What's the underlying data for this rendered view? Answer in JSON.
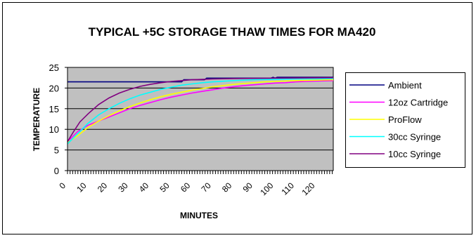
{
  "chart_data": {
    "type": "line",
    "title": "TYPICAL +5C STORAGE THAW TIMES FOR MA420",
    "xlabel": "MINUTES",
    "ylabel": "TEMPERATURE",
    "ylim": [
      0,
      25
    ],
    "yticks": [
      "0",
      "5",
      "10",
      "15",
      "20",
      "25"
    ],
    "xlim": [
      0,
      128
    ],
    "xticks": [
      "0",
      "10",
      "20",
      "30",
      "40",
      "50",
      "60",
      "70",
      "80",
      "90",
      "100",
      "110",
      "120"
    ],
    "grid": true,
    "legend_position": "right",
    "colors": {
      "plot_background": "#c0c0c0",
      "frame": "#000000"
    },
    "series": [
      {
        "name": "Ambient",
        "color": "#000080",
        "points": [
          [
            0,
            21.5
          ],
          [
            55,
            21.5
          ],
          [
            56,
            22.0
          ],
          [
            66,
            22.0
          ],
          [
            67,
            22.4
          ],
          [
            98,
            22.4
          ],
          [
            99,
            22.6
          ],
          [
            100,
            22.4
          ],
          [
            101,
            22.6
          ],
          [
            128,
            22.6
          ]
        ]
      },
      {
        "name": "12oz Cartridge",
        "color": "#ff00ff",
        "points": [
          [
            0,
            7.0
          ],
          [
            5,
            9.5
          ],
          [
            10,
            11.0
          ],
          [
            15,
            12.0
          ],
          [
            20,
            13.0
          ],
          [
            25,
            14.0
          ],
          [
            30,
            15.0
          ],
          [
            35,
            15.8
          ],
          [
            40,
            16.5
          ],
          [
            45,
            17.2
          ],
          [
            50,
            17.8
          ],
          [
            55,
            18.3
          ],
          [
            60,
            18.8
          ],
          [
            65,
            19.2
          ],
          [
            70,
            19.6
          ],
          [
            75,
            20.0
          ],
          [
            80,
            20.3
          ],
          [
            85,
            20.6
          ],
          [
            90,
            20.8
          ],
          [
            95,
            21.0
          ],
          [
            100,
            21.2
          ],
          [
            105,
            21.3
          ],
          [
            110,
            21.5
          ],
          [
            115,
            21.6
          ],
          [
            120,
            21.7
          ],
          [
            128,
            21.8
          ]
        ]
      },
      {
        "name": "ProFlow",
        "color": "#ffff00",
        "points": [
          [
            0,
            6.8
          ],
          [
            5,
            8.5
          ],
          [
            10,
            10.5
          ],
          [
            15,
            12.0
          ],
          [
            20,
            13.3
          ],
          [
            25,
            14.5
          ],
          [
            30,
            15.5
          ],
          [
            35,
            16.4
          ],
          [
            40,
            17.2
          ],
          [
            45,
            17.9
          ],
          [
            50,
            18.5
          ],
          [
            55,
            19.0
          ],
          [
            60,
            19.5
          ],
          [
            65,
            19.9
          ],
          [
            70,
            20.3
          ],
          [
            75,
            20.6
          ],
          [
            80,
            20.9
          ],
          [
            85,
            21.1
          ],
          [
            90,
            21.3
          ],
          [
            95,
            21.5
          ],
          [
            100,
            21.6
          ],
          [
            110,
            21.8
          ],
          [
            120,
            21.9
          ],
          [
            128,
            22.0
          ]
        ]
      },
      {
        "name": "30cc Syringe",
        "color": "#00ffff",
        "points": [
          [
            0,
            6.5
          ],
          [
            5,
            9.0
          ],
          [
            10,
            11.5
          ],
          [
            15,
            13.5
          ],
          [
            20,
            15.0
          ],
          [
            25,
            16.3
          ],
          [
            30,
            17.4
          ],
          [
            35,
            18.3
          ],
          [
            40,
            19.0
          ],
          [
            45,
            19.7
          ],
          [
            50,
            20.2
          ],
          [
            55,
            20.7
          ],
          [
            60,
            21.0
          ],
          [
            65,
            21.3
          ],
          [
            70,
            21.5
          ],
          [
            80,
            21.8
          ],
          [
            90,
            22.0
          ],
          [
            100,
            22.1
          ],
          [
            110,
            22.2
          ],
          [
            120,
            22.2
          ],
          [
            128,
            22.3
          ]
        ]
      },
      {
        "name": "10cc Syringe",
        "color": "#800080",
        "points": [
          [
            0,
            7.0
          ],
          [
            3,
            9.5
          ],
          [
            6,
            11.8
          ],
          [
            10,
            13.8
          ],
          [
            15,
            16.0
          ],
          [
            20,
            17.6
          ],
          [
            25,
            18.8
          ],
          [
            30,
            19.7
          ],
          [
            35,
            20.4
          ],
          [
            40,
            20.9
          ],
          [
            45,
            21.3
          ],
          [
            50,
            21.6
          ],
          [
            55,
            21.8
          ],
          [
            60,
            22.0
          ],
          [
            65,
            22.1
          ],
          [
            70,
            22.2
          ],
          [
            80,
            22.3
          ],
          [
            100,
            22.4
          ],
          [
            128,
            22.5
          ]
        ]
      }
    ]
  }
}
